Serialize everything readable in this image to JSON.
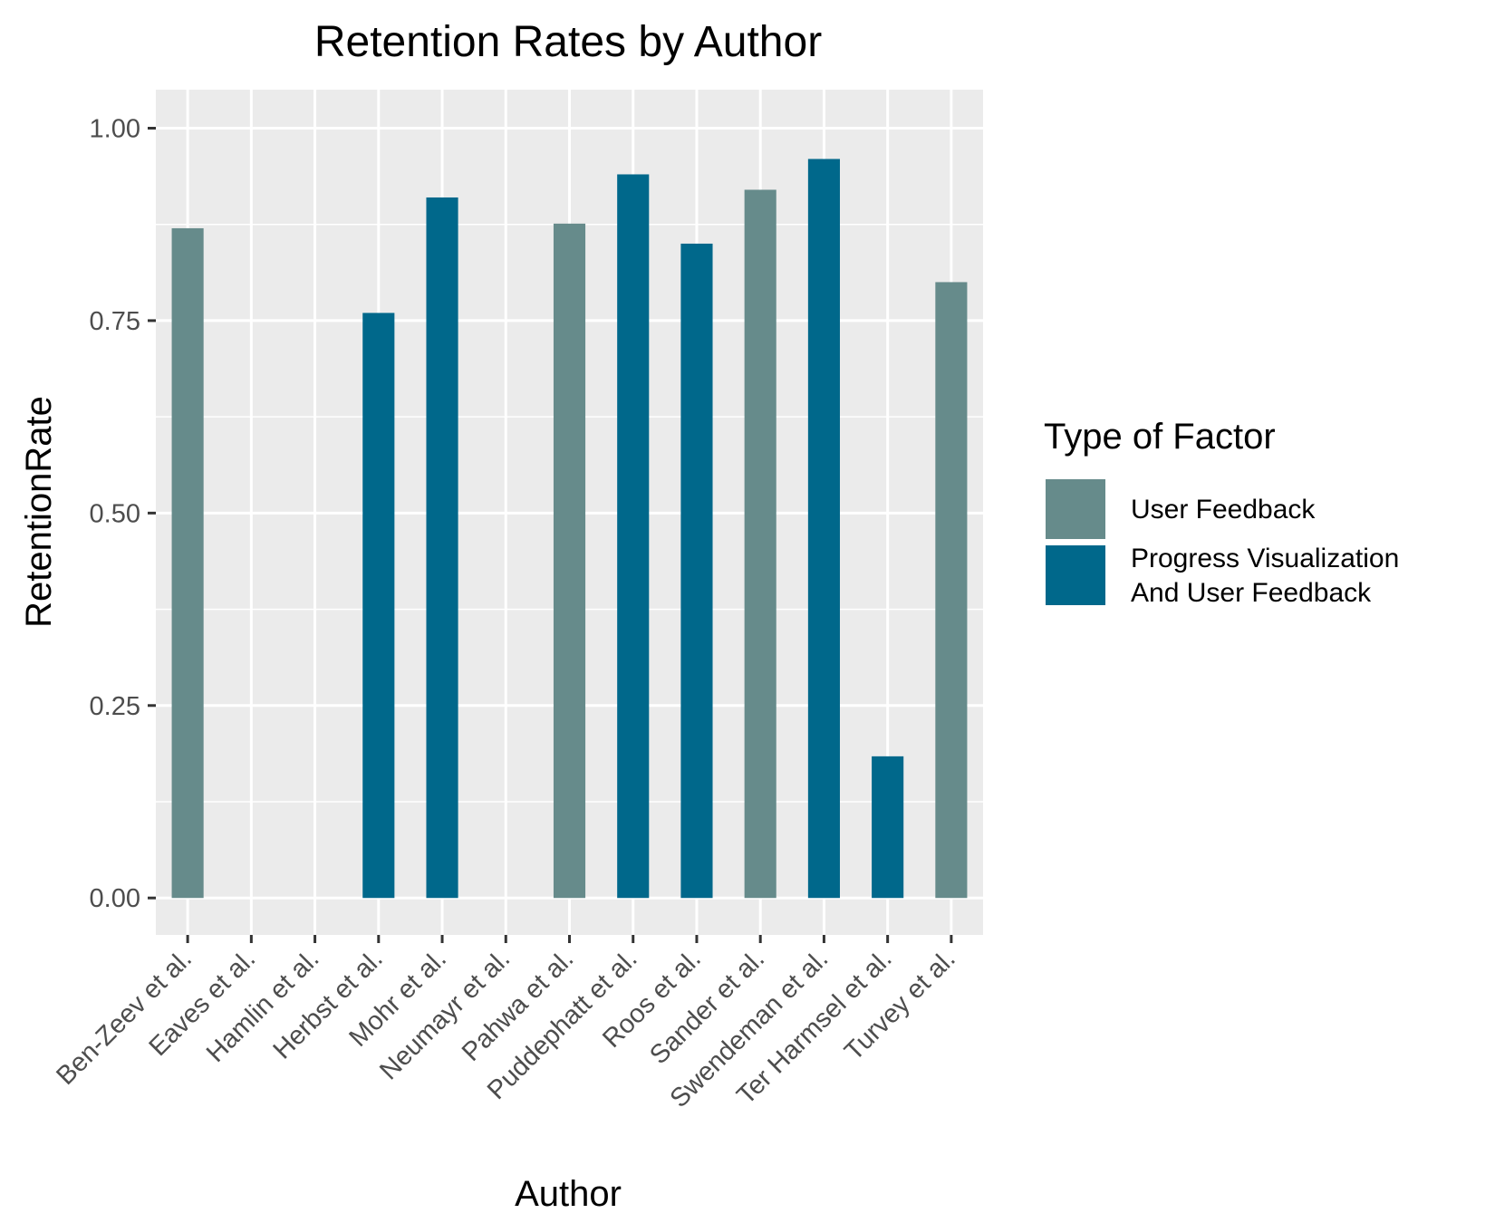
{
  "chart_data": {
    "type": "bar",
    "title": "Retention Rates by Author",
    "xlabel": "Author",
    "ylabel": "RetentionRate",
    "ylim": [
      -0.048,
      1.05
    ],
    "yticks": [
      0,
      0.25,
      0.5,
      0.75,
      1
    ],
    "ytick_labels": [
      "0.00",
      "0.25",
      "0.50",
      "0.75",
      "1.00"
    ],
    "grid": true,
    "legend_position": "right",
    "categories": [
      "Ben-Zeev et al.",
      "Eaves et al.",
      "Hamlin et al.",
      "Herbst et al.",
      "Mohr et al.",
      "Neumayr et al.",
      "Pahwa et al.",
      "Puddephatt et al.",
      "Roos et al.",
      "Sander et al.",
      "Swendeman et al.",
      "Ter Harmsel et al.",
      "Turvey et al."
    ],
    "values": [
      0.87,
      null,
      null,
      0.76,
      0.91,
      null,
      0.876,
      0.94,
      0.85,
      0.92,
      0.96,
      0.184,
      0.8
    ],
    "factor_types": [
      "User Feedback",
      null,
      null,
      "Progress Visualization And User Feedback",
      "Progress Visualization And User Feedback",
      null,
      "User Feedback",
      "Progress Visualization And User Feedback",
      "Progress Visualization And User Feedback",
      "User Feedback",
      "Progress Visualization And User Feedback",
      "Progress Visualization And User Feedback",
      "User Feedback"
    ],
    "legend": {
      "title": "Type of Factor",
      "entries": [
        {
          "key": "User Feedback",
          "lines": [
            "User Feedback"
          ],
          "color": "#668b8b"
        },
        {
          "key": "Progress Visualization And User Feedback",
          "lines": [
            "Progress Visualization",
            "And User Feedback"
          ],
          "color": "#00688b"
        }
      ]
    },
    "colors": {
      "panel_background": "#ebebeb",
      "grid": "#ffffff",
      "tick": "#333333"
    }
  }
}
